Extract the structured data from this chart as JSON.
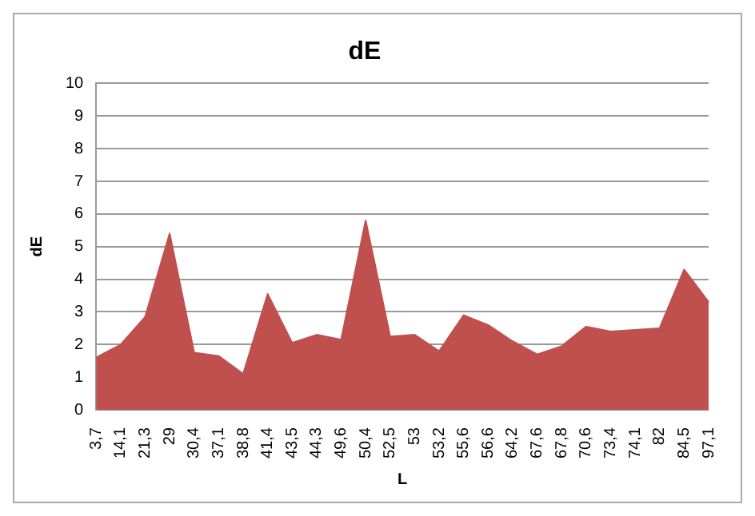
{
  "chart_data": {
    "type": "area",
    "title": "dE",
    "xlabel": "L",
    "ylabel": "dE",
    "categories": [
      "3,7",
      "14,1",
      "21,3",
      "29",
      "30,4",
      "37,1",
      "38,8",
      "41,4",
      "43,5",
      "44,3",
      "49,6",
      "50,4",
      "52,5",
      "53",
      "53,2",
      "55,6",
      "56,6",
      "64,2",
      "67,6",
      "67,8",
      "70,6",
      "73,4",
      "74,1",
      "82",
      "84,5",
      "97,1"
    ],
    "values": [
      1.6,
      2.0,
      2.85,
      5.4,
      1.75,
      1.65,
      1.1,
      3.55,
      2.05,
      2.3,
      2.15,
      5.8,
      2.25,
      2.3,
      1.8,
      2.9,
      2.6,
      2.1,
      1.7,
      1.95,
      2.55,
      2.4,
      2.45,
      2.5,
      4.3,
      3.3
    ],
    "color": "#c0504d",
    "ylim": [
      0,
      10
    ],
    "yticks": [
      0,
      1,
      2,
      3,
      4,
      5,
      6,
      7,
      8,
      9,
      10
    ],
    "grid": "y"
  }
}
